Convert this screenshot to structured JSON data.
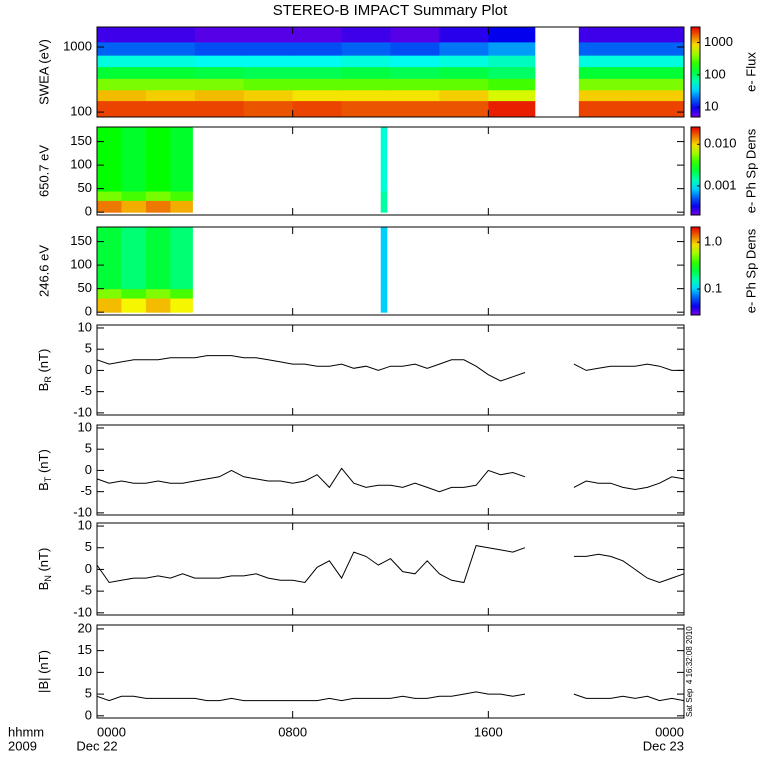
{
  "title": "STEREO-B IMPACT Summary Plot",
  "timestamp": "Sat Sep  4 16:32:08 2010",
  "xaxis": {
    "unit_label": "hhmm",
    "year": "2009",
    "dates": [
      "Dec 22",
      "Dec 23"
    ]
  },
  "chart_data": [
    {
      "type": "heatmap",
      "ylabel": "SWEA (eV)",
      "log_y": true,
      "ylim": [
        84,
        2030
      ],
      "yticks": [
        100,
        1000
      ],
      "xlim": [
        0,
        24
      ],
      "xticks": [
        0,
        8,
        16,
        24
      ],
      "x_edges": [
        0,
        2,
        4,
        6,
        8,
        10,
        12,
        14,
        16,
        17.9,
        19.7,
        21.8,
        24
      ],
      "y_edges": [
        84,
        150,
        220,
        330,
        500,
        750,
        1200,
        2030
      ],
      "values": [
        [
          2000,
          2000,
          2000,
          1800,
          2000,
          1800,
          1800,
          1800,
          2500,
          null,
          2000,
          2000
        ],
        [
          1000,
          900,
          1000,
          900,
          800,
          800,
          800,
          900,
          600,
          null,
          900,
          900
        ],
        [
          350,
          350,
          350,
          300,
          300,
          300,
          300,
          300,
          250,
          null,
          350,
          350
        ],
        [
          130,
          130,
          120,
          110,
          110,
          120,
          110,
          120,
          100,
          null,
          130,
          130
        ],
        [
          50,
          50,
          45,
          45,
          45,
          50,
          45,
          50,
          60,
          null,
          50,
          50
        ],
        [
          18,
          18,
          16,
          16,
          16,
          18,
          16,
          20,
          25,
          null,
          18,
          18
        ],
        [
          7,
          7,
          6,
          6,
          6,
          7,
          6,
          8,
          10,
          null,
          7,
          7
        ]
      ],
      "colorbar": {
        "label": "e- Flux",
        "log": true,
        "range": [
          5,
          3000
        ],
        "ticks": [
          10,
          100,
          1000
        ]
      }
    },
    {
      "type": "heatmap",
      "ylabel": "650.7 eV",
      "log_y": false,
      "ylim": [
        -6,
        181
      ],
      "yticks": [
        0,
        50,
        100,
        150
      ],
      "xlim": [
        0,
        24
      ],
      "xticks": [
        0,
        8,
        16,
        24
      ],
      "x_edges": [
        0,
        1,
        2,
        3,
        3.9,
        11.6,
        11.85
      ],
      "y_edges": [
        0,
        25,
        45,
        180
      ],
      "values": [
        [
          0.015,
          0.012,
          0.015,
          0.012,
          null,
          0.0015
        ],
        [
          0.005,
          0.004,
          0.005,
          0.004,
          null,
          0.0015
        ],
        [
          0.003,
          0.0025,
          0.003,
          0.0025,
          null,
          0.0012
        ]
      ],
      "colorbar": {
        "label": "e- Ph Sp Dens",
        "log": true,
        "range": [
          0.0002,
          0.026
        ],
        "ticks": [
          0.001,
          {
            "value": 0.01,
            "label": "0.010"
          }
        ]
      }
    },
    {
      "type": "heatmap",
      "ylabel": "246.6 eV",
      "log_y": false,
      "ylim": [
        -6,
        181
      ],
      "yticks": [
        0,
        50,
        100,
        150
      ],
      "xlim": [
        0,
        24
      ],
      "xticks": [
        0,
        8,
        16,
        24
      ],
      "x_edges": [
        0,
        1,
        2,
        3,
        3.9,
        11.6,
        11.85
      ],
      "y_edges": [
        0,
        30,
        50,
        180
      ],
      "values": [
        [
          1.0,
          0.8,
          1.0,
          0.8,
          null,
          0.1
        ],
        [
          0.5,
          0.4,
          0.5,
          0.4,
          null,
          0.1
        ],
        [
          0.25,
          0.2,
          0.25,
          0.2,
          null,
          0.1
        ]
      ],
      "colorbar": {
        "label": "e- Ph Sp Dens",
        "log": true,
        "range": [
          0.028,
          2.1
        ],
        "ticks": [
          0.1,
          {
            "value": 1,
            "label": "1.0"
          }
        ]
      }
    },
    {
      "type": "line",
      "ylabel": {
        "base": "B",
        "sub": "R",
        "unit": " (nT)"
      },
      "color": "#000000",
      "ylim": [
        -10.5,
        10.7
      ],
      "yticks": [
        -10,
        -5,
        0,
        5,
        10
      ],
      "xlim": [
        0,
        24
      ],
      "xticks": [
        0,
        8,
        16,
        24
      ],
      "x": [
        0,
        0.5,
        1,
        1.5,
        2,
        2.5,
        3,
        3.5,
        4,
        4.5,
        5,
        5.5,
        6,
        6.5,
        7,
        7.5,
        8,
        8.5,
        9,
        9.5,
        10,
        10.5,
        11,
        11.5,
        12,
        12.5,
        13,
        13.5,
        14,
        14.5,
        15,
        15.5,
        16,
        16.5,
        17,
        17.5,
        18,
        18.5,
        19,
        19.5,
        20,
        20.5,
        21,
        21.5,
        22,
        22.5,
        23,
        23.5,
        24
      ],
      "values": [
        2.5,
        1.5,
        2,
        2.5,
        2.5,
        2.5,
        3,
        3,
        3,
        3.5,
        3.5,
        3.5,
        3,
        3,
        2.5,
        2,
        1.5,
        1.5,
        1,
        1,
        1.5,
        0.5,
        1,
        0,
        1,
        1,
        1.5,
        0.5,
        1.5,
        2.5,
        2.5,
        1,
        -1,
        -2.5,
        -1.5,
        -0.5,
        null,
        null,
        null,
        1.5,
        0,
        0.5,
        1,
        1,
        1,
        1.5,
        1,
        0,
        0
      ]
    },
    {
      "type": "line",
      "ylabel": {
        "base": "B",
        "sub": "T",
        "unit": " (nT)"
      },
      "color": "#000000",
      "ylim": [
        -10.5,
        10.7
      ],
      "yticks": [
        -10,
        -5,
        0,
        5,
        10
      ],
      "xlim": [
        0,
        24
      ],
      "xticks": [
        0,
        8,
        16,
        24
      ],
      "x": [
        0,
        0.5,
        1,
        1.5,
        2,
        2.5,
        3,
        3.5,
        4,
        4.5,
        5,
        5.5,
        6,
        6.5,
        7,
        7.5,
        8,
        8.5,
        9,
        9.5,
        10,
        10.5,
        11,
        11.5,
        12,
        12.5,
        13,
        13.5,
        14,
        14.5,
        15,
        15.5,
        16,
        16.5,
        17,
        17.5,
        18,
        18.5,
        19,
        19.5,
        20,
        20.5,
        21,
        21.5,
        22,
        22.5,
        23,
        23.5,
        24
      ],
      "values": [
        -2,
        -3,
        -2.5,
        -3,
        -3,
        -2.5,
        -3,
        -3,
        -2.5,
        -2,
        -1.5,
        0,
        -1.5,
        -2,
        -2.5,
        -2.5,
        -3,
        -2.5,
        -1,
        -4,
        0.5,
        -3,
        -4,
        -3.5,
        -3.5,
        -4,
        -3,
        -4,
        -5,
        -4,
        -4,
        -3.5,
        0,
        -1,
        -0.5,
        -1.5,
        null,
        null,
        null,
        -4,
        -2.5,
        -3,
        -3,
        -4,
        -4.5,
        -4,
        -3,
        -1.5,
        -2
      ]
    },
    {
      "type": "line",
      "ylabel": {
        "base": "B",
        "sub": "N",
        "unit": " (nT)"
      },
      "color": "#000000",
      "ylim": [
        -10.5,
        10.7
      ],
      "yticks": [
        -10,
        -5,
        0,
        5,
        10
      ],
      "xlim": [
        0,
        24
      ],
      "xticks": [
        0,
        8,
        16,
        24
      ],
      "x": [
        0,
        0.5,
        1,
        1.5,
        2,
        2.5,
        3,
        3.5,
        4,
        4.5,
        5,
        5.5,
        6,
        6.5,
        7,
        7.5,
        8,
        8.5,
        9,
        9.5,
        10,
        10.5,
        11,
        11.5,
        12,
        12.5,
        13,
        13.5,
        14,
        14.5,
        15,
        15.5,
        16,
        16.5,
        17,
        17.5,
        18,
        18.5,
        19,
        19.5,
        20,
        20.5,
        21,
        21.5,
        22,
        22.5,
        23,
        23.5,
        24
      ],
      "values": [
        1,
        -3,
        -2.5,
        -2,
        -2,
        -1.5,
        -2,
        -1,
        -2,
        -2,
        -2,
        -1.5,
        -1.5,
        -1,
        -2,
        -2.5,
        -2.5,
        -3,
        0.5,
        2,
        -2,
        4,
        3,
        1,
        2.5,
        -0.5,
        -1,
        2,
        -1,
        -2.5,
        -3,
        5.5,
        5,
        4.5,
        4,
        5,
        null,
        null,
        null,
        3,
        3,
        3.5,
        3,
        2,
        0,
        -2,
        -3,
        -2,
        -1
      ]
    },
    {
      "type": "line",
      "ylabel": {
        "base": "|B| (nT)"
      },
      "color": "#000000",
      "ylim": [
        -0.5,
        20.9
      ],
      "yticks": [
        0,
        5,
        10,
        15,
        20
      ],
      "xlim": [
        0,
        24
      ],
      "xticks": [
        {
          "value": 0,
          "label": "0000"
        },
        {
          "value": 8,
          "label": "0800"
        },
        {
          "value": 16,
          "label": "1600"
        },
        {
          "value": 24,
          "label": "0000"
        }
      ],
      "x": [
        0,
        0.5,
        1,
        1.5,
        2,
        2.5,
        3,
        3.5,
        4,
        4.5,
        5,
        5.5,
        6,
        6.5,
        7,
        7.5,
        8,
        8.5,
        9,
        9.5,
        10,
        10.5,
        11,
        11.5,
        12,
        12.5,
        13,
        13.5,
        14,
        14.5,
        15,
        15.5,
        16,
        16.5,
        17,
        17.5,
        18,
        18.5,
        19,
        19.5,
        20,
        20.5,
        21,
        21.5,
        22,
        22.5,
        23,
        23.5,
        24
      ],
      "values": [
        4.5,
        3.5,
        4.5,
        4.5,
        4,
        4,
        4,
        4,
        4,
        3.5,
        3.5,
        4,
        3.5,
        3.5,
        3.5,
        3.5,
        3.5,
        3.5,
        3.5,
        4,
        3.5,
        4,
        4,
        4,
        4,
        4.5,
        4,
        4,
        4.5,
        4.5,
        5,
        5.5,
        5,
        5,
        4.5,
        5,
        null,
        null,
        null,
        5,
        4,
        4,
        4,
        4.5,
        4,
        4.5,
        3.5,
        4,
        3.5
      ]
    }
  ]
}
